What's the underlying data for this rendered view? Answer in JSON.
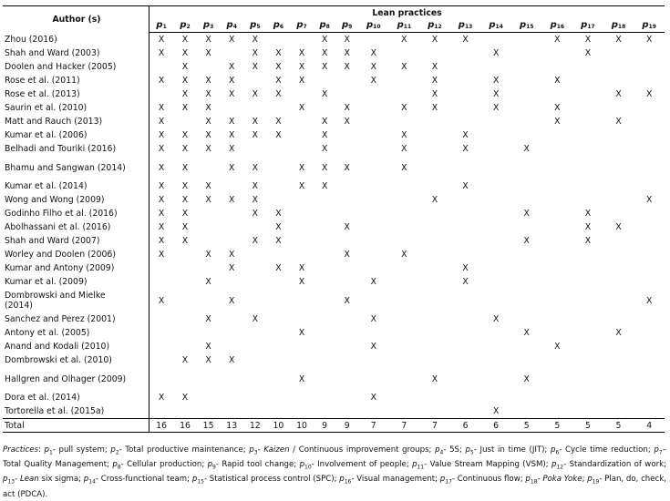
{
  "header": {
    "author_label": "Author (s)",
    "group_label": "Lean practices",
    "practices": [
      "p1",
      "p2",
      "p3",
      "p4",
      "p5",
      "p6",
      "p7",
      "p8",
      "p9",
      "p10",
      "p11",
      "p12",
      "p13",
      "p14",
      "p15",
      "p16",
      "p17",
      "p18",
      "p19"
    ]
  },
  "mark": "X",
  "rows": [
    {
      "author": "Zhou (2016)",
      "marks": [
        1,
        2,
        3,
        4,
        5,
        8,
        9,
        11,
        12,
        13,
        16,
        17,
        18,
        19
      ]
    },
    {
      "author": "Shah and Ward (2003)",
      "marks": [
        1,
        2,
        3,
        5,
        6,
        7,
        8,
        9,
        10,
        14,
        17
      ]
    },
    {
      "author": "Doolen and Hacker (2005)",
      "marks": [
        2,
        4,
        5,
        6,
        7,
        8,
        9,
        10,
        11,
        12
      ]
    },
    {
      "author": "Rose et al. (2011)",
      "marks": [
        1,
        2,
        3,
        4,
        6,
        7,
        10,
        12,
        14,
        16
      ]
    },
    {
      "author": "Rose et al. (2013)",
      "marks": [
        2,
        3,
        4,
        5,
        6,
        8,
        12,
        14,
        18,
        19
      ]
    },
    {
      "author": "Saurin et al. (2010)",
      "marks": [
        1,
        2,
        3,
        7,
        9,
        11,
        12,
        14,
        16
      ]
    },
    {
      "author": "Matt and Rauch (2013)",
      "marks": [
        1,
        3,
        4,
        5,
        6,
        8,
        9,
        16,
        18
      ]
    },
    {
      "author": "Kumar et al. (2006)",
      "marks": [
        1,
        2,
        3,
        4,
        5,
        6,
        8,
        11,
        13
      ]
    },
    {
      "author": "Belhadi and Touriki (2016)",
      "marks": [
        1,
        2,
        3,
        4,
        8,
        11,
        13,
        15
      ]
    },
    {
      "author": "Bhamu and Sangwan (2014)",
      "marks": [
        1,
        2,
        4,
        5,
        7,
        8,
        9,
        11
      ],
      "two_line": true
    },
    {
      "author": "Kumar et al. (2014)",
      "marks": [
        1,
        2,
        3,
        5,
        7,
        8,
        13
      ]
    },
    {
      "author": "Wong and Wong (2009)",
      "marks": [
        1,
        2,
        3,
        4,
        5,
        12,
        19
      ]
    },
    {
      "author": "Godinho Filho et al. (2016)",
      "marks": [
        1,
        2,
        5,
        6,
        15,
        17
      ]
    },
    {
      "author": "Abolhassani et al. (2016)",
      "marks": [
        1,
        2,
        6,
        9,
        17,
        18
      ]
    },
    {
      "author": "Shah and Ward (2007)",
      "marks": [
        1,
        2,
        5,
        6,
        15,
        17
      ]
    },
    {
      "author": "Worley and Doolen (2006)",
      "marks": [
        1,
        3,
        4,
        9,
        11
      ]
    },
    {
      "author": "Kumar and Antony (2009)",
      "marks": [
        4,
        6,
        7,
        13
      ]
    },
    {
      "author": "Kumar et al. (2009)",
      "marks": [
        3,
        7,
        10,
        13
      ]
    },
    {
      "author": "Dombrowski and Mielke (2014)",
      "marks": [
        1,
        4,
        9,
        19
      ],
      "two_line": true
    },
    {
      "author": "Sanchez and Perez (2001)",
      "marks": [
        3,
        5,
        10,
        14
      ]
    },
    {
      "author": "Antony et al. (2005)",
      "marks": [
        7,
        15,
        18
      ]
    },
    {
      "author": "Anand and Kodali (2010)",
      "marks": [
        3,
        10,
        16
      ]
    },
    {
      "author": "Dombrowski et al. (2010)",
      "marks": [
        2,
        3,
        4
      ]
    },
    {
      "author": "Hallgren and Olhager (2009)",
      "marks": [
        7,
        12,
        15
      ],
      "two_line": true
    },
    {
      "author": "Dora et al. (2014)",
      "marks": [
        1,
        2,
        10
      ]
    },
    {
      "author": "Tortorella et al. (2015a)",
      "marks": [
        14
      ]
    }
  ],
  "total": {
    "label": "Total",
    "values": [
      16,
      16,
      15,
      13,
      12,
      10,
      10,
      9,
      9,
      7,
      7,
      7,
      6,
      6,
      5,
      5,
      5,
      5,
      4
    ]
  },
  "footnote": {
    "prefix": "Practices",
    "items": [
      [
        "p1",
        "- pull system; "
      ],
      [
        "p2",
        "- Total productive maintenance; "
      ],
      [
        "p3",
        "- ",
        "Kaizen",
        " / Continuous improvement groups; "
      ],
      [
        "p4",
        "- 5S; "
      ],
      [
        "p5",
        "- Just in time (JIT); "
      ],
      [
        "p6",
        "- Cycle time reduction; "
      ],
      [
        "p7",
        "– Total Quality Management; "
      ],
      [
        "p8",
        "- Cellular production; "
      ],
      [
        "p9",
        "- Rapid tool change; "
      ],
      [
        "p10",
        "- Involvement of people; "
      ],
      [
        "p11",
        "- Value Stream Mapping (VSM); "
      ],
      [
        "p12",
        "- Standardization of work; "
      ],
      [
        "p13",
        "- ",
        "Lean",
        " six sigma; "
      ],
      [
        "p14",
        "- Cross-functional team; "
      ],
      [
        "p15",
        "- Statistical process control (SPC); "
      ],
      [
        "p16",
        "- Visual management; "
      ],
      [
        "p17",
        "- Continuous flow; "
      ],
      [
        "p18",
        "- ",
        "Poka Yoke",
        "; "
      ],
      [
        "p19",
        "- Plan, do, check, act (PDCA)."
      ]
    ]
  }
}
